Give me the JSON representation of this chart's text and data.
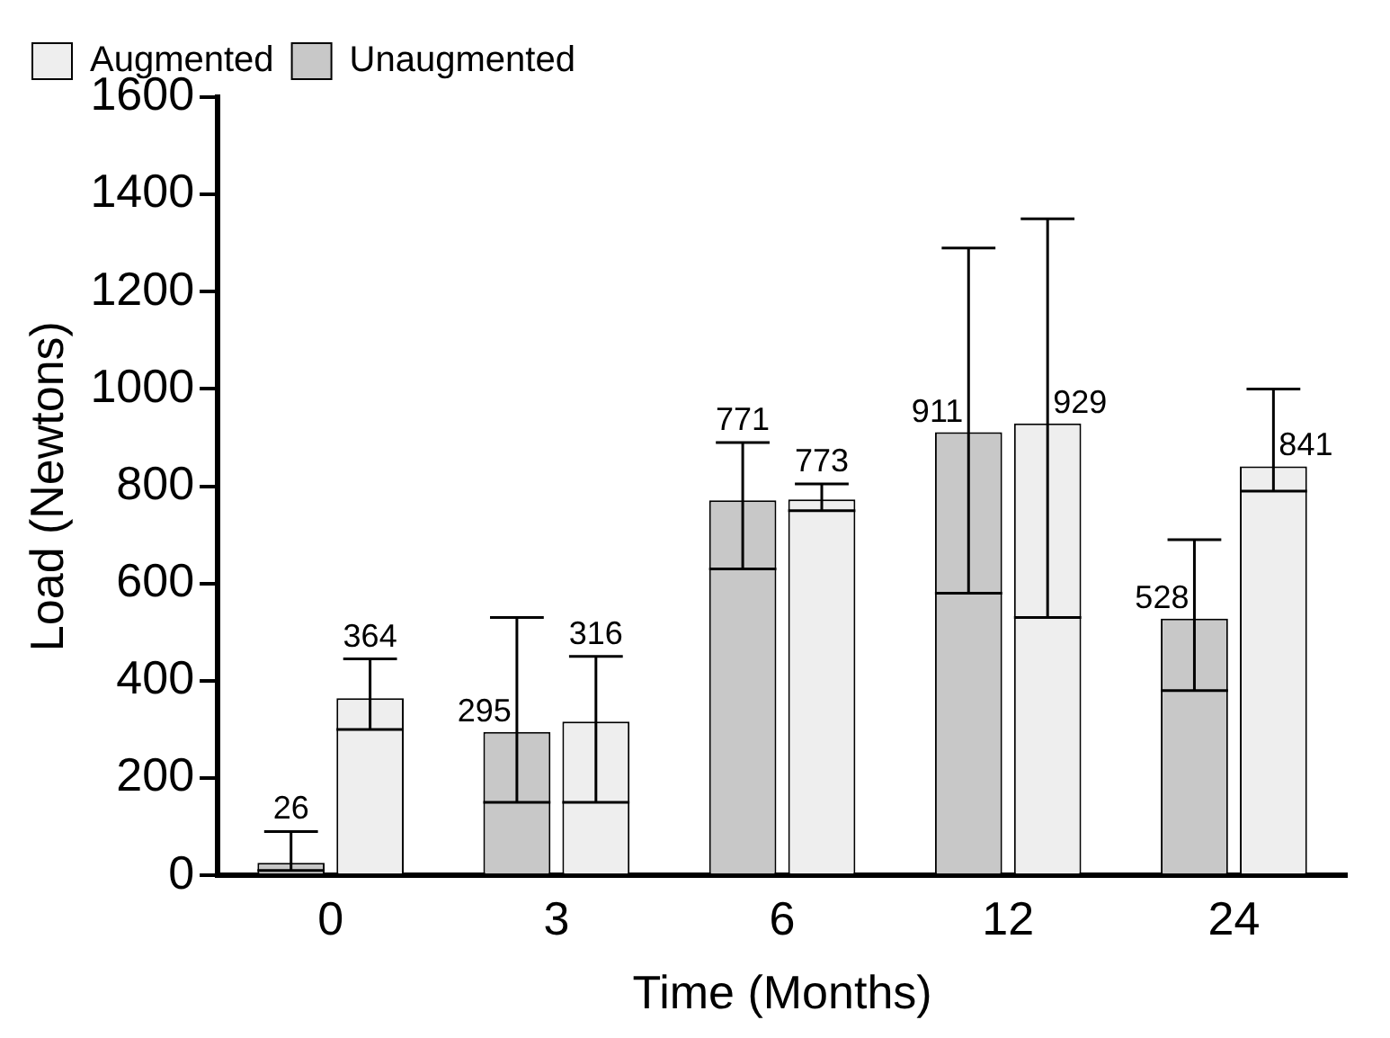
{
  "chart_data": {
    "type": "bar",
    "xlabel": "Time (Months)",
    "ylabel": "Load (Newtons)",
    "categories": [
      "0",
      "3",
      "6",
      "12",
      "24"
    ],
    "series": [
      {
        "name": "Unaugmented",
        "color": "#c8c8c8",
        "values": [
          26,
          295,
          771,
          911,
          528
        ],
        "errors": [
          [
            10,
            90
          ],
          [
            150,
            530
          ],
          [
            630,
            890
          ],
          [
            580,
            1290
          ],
          [
            380,
            690
          ]
        ]
      },
      {
        "name": "Augmented",
        "color": "#eeeeee",
        "values": [
          364,
          316,
          773,
          929,
          841
        ],
        "errors": [
          [
            300,
            445
          ],
          [
            150,
            450
          ],
          [
            750,
            805
          ],
          [
            530,
            1350
          ],
          [
            790,
            1000
          ]
        ]
      }
    ],
    "ylim": [
      0,
      1600
    ],
    "yticks": [
      0,
      200,
      400,
      600,
      800,
      1000,
      1200,
      1400,
      1600
    ],
    "data_labels": true,
    "legend": "top left",
    "grid": false
  }
}
